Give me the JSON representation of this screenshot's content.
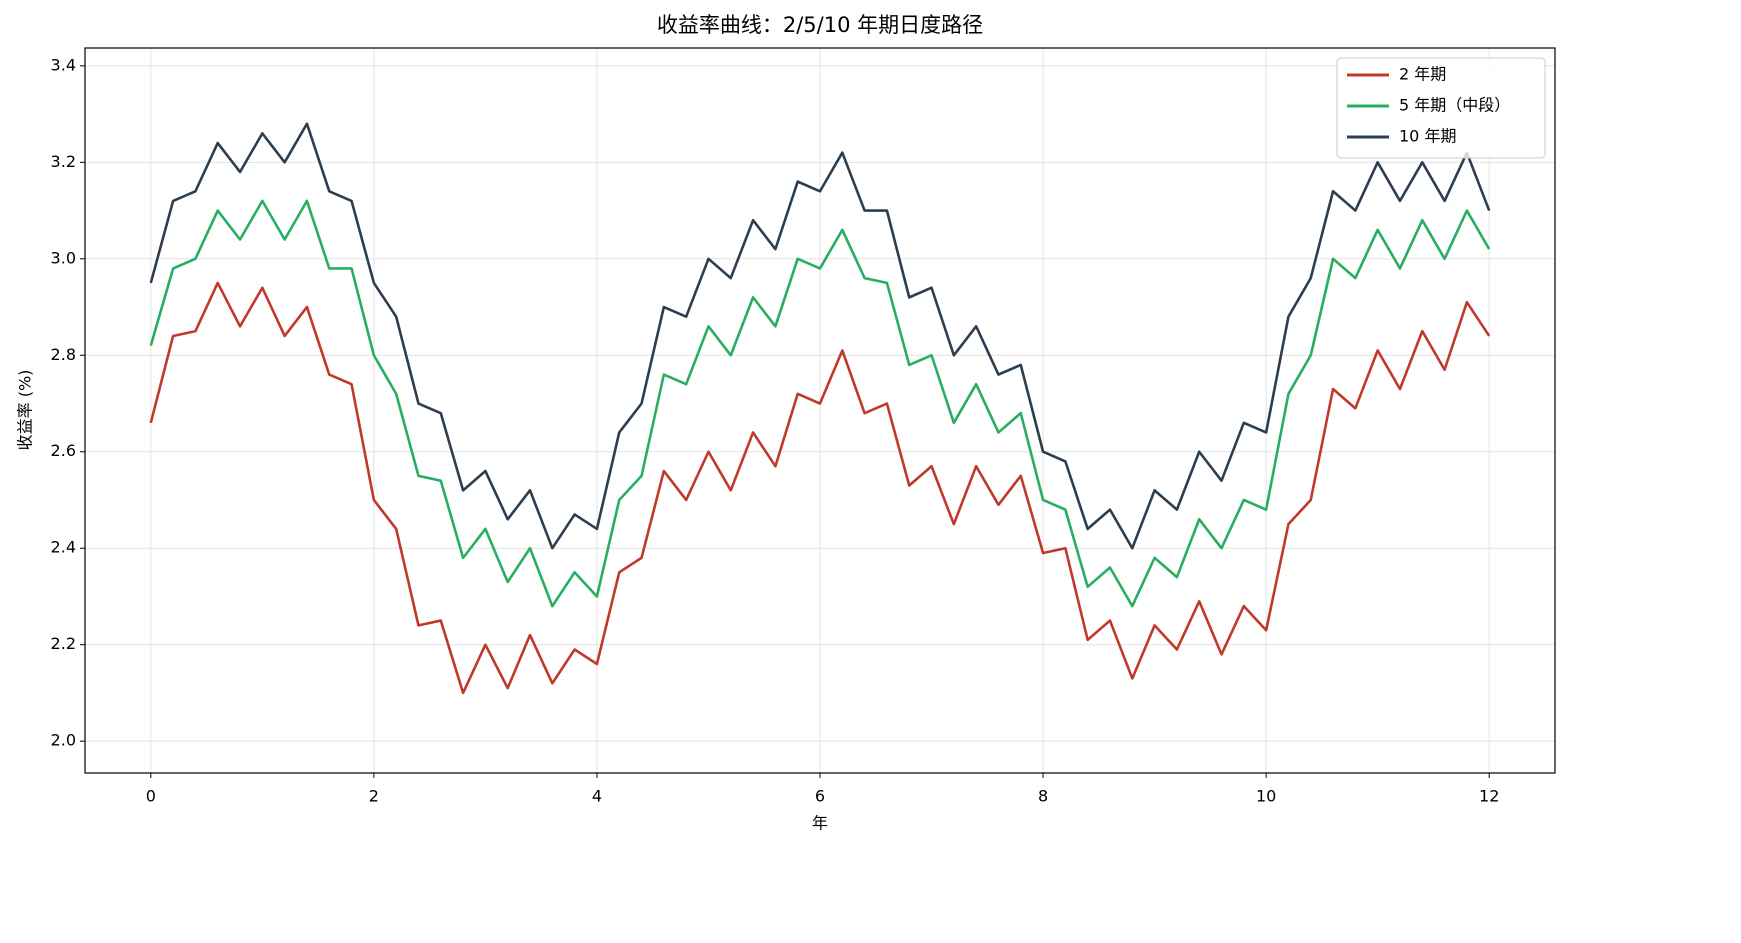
{
  "chart_data": {
    "type": "line",
    "title": "收益率曲线：2/5/10 年期日度路径",
    "xlabel": "年",
    "ylabel": "收益率 (%)",
    "x": [
      0,
      0.2,
      0.4,
      0.6,
      0.8,
      1.0,
      1.2,
      1.4,
      1.6,
      1.8,
      2.0,
      2.2,
      2.4,
      2.6,
      2.8,
      3.0,
      3.2,
      3.4,
      3.6,
      3.8,
      4.0,
      4.2,
      4.4,
      4.6,
      4.8,
      5.0,
      5.2,
      5.4,
      5.6,
      5.8,
      6.0,
      6.2,
      6.4,
      6.6,
      6.8,
      7.0,
      7.2,
      7.4,
      7.6,
      7.8,
      8.0,
      8.2,
      8.4,
      8.6,
      8.8,
      9.0,
      9.2,
      9.4,
      9.6,
      9.8,
      10.0,
      10.2,
      10.4,
      10.6,
      10.8,
      11.0,
      11.2,
      11.4,
      11.6,
      11.8,
      12.0
    ],
    "series": [
      {
        "name": "2 年期",
        "color": "#c0392b",
        "values": [
          2.66,
          2.84,
          2.85,
          2.95,
          2.86,
          2.94,
          2.84,
          2.9,
          2.76,
          2.74,
          2.5,
          2.44,
          2.24,
          2.25,
          2.1,
          2.2,
          2.11,
          2.22,
          2.12,
          2.19,
          2.16,
          2.35,
          2.38,
          2.56,
          2.5,
          2.6,
          2.52,
          2.64,
          2.57,
          2.72,
          2.7,
          2.81,
          2.68,
          2.7,
          2.53,
          2.57,
          2.45,
          2.57,
          2.49,
          2.55,
          2.39,
          2.4,
          2.21,
          2.25,
          2.13,
          2.24,
          2.19,
          2.29,
          2.18,
          2.28,
          2.23,
          2.45,
          2.5,
          2.73,
          2.69,
          2.81,
          2.73,
          2.85,
          2.77,
          2.91,
          2.84
        ]
      },
      {
        "name": "5 年期（中段）",
        "color": "#27ae60",
        "values": [
          2.82,
          2.98,
          3.0,
          3.1,
          3.04,
          3.12,
          3.04,
          3.12,
          2.98,
          2.98,
          2.8,
          2.72,
          2.55,
          2.54,
          2.38,
          2.44,
          2.33,
          2.4,
          2.28,
          2.35,
          2.3,
          2.5,
          2.55,
          2.76,
          2.74,
          2.86,
          2.8,
          2.92,
          2.86,
          3.0,
          2.98,
          3.06,
          2.96,
          2.95,
          2.78,
          2.8,
          2.66,
          2.74,
          2.64,
          2.68,
          2.5,
          2.48,
          2.32,
          2.36,
          2.28,
          2.38,
          2.34,
          2.46,
          2.4,
          2.5,
          2.48,
          2.72,
          2.8,
          3.0,
          2.96,
          3.06,
          2.98,
          3.08,
          3.0,
          3.1,
          3.02
        ]
      },
      {
        "name": "10 年期",
        "color": "#2c3e50",
        "values": [
          2.95,
          3.12,
          3.14,
          3.24,
          3.18,
          3.26,
          3.2,
          3.28,
          3.14,
          3.12,
          2.95,
          2.88,
          2.7,
          2.68,
          2.52,
          2.56,
          2.46,
          2.52,
          2.4,
          2.47,
          2.44,
          2.64,
          2.7,
          2.9,
          2.88,
          3.0,
          2.96,
          3.08,
          3.02,
          3.16,
          3.14,
          3.22,
          3.1,
          3.1,
          2.92,
          2.94,
          2.8,
          2.86,
          2.76,
          2.78,
          2.6,
          2.58,
          2.44,
          2.48,
          2.4,
          2.52,
          2.48,
          2.6,
          2.54,
          2.66,
          2.64,
          2.88,
          2.96,
          3.14,
          3.1,
          3.2,
          3.12,
          3.2,
          3.12,
          3.22,
          3.1
        ]
      }
    ],
    "xlim": [
      -0.59,
      12.59
    ],
    "ylim": [
      1.934,
      3.437
    ],
    "xticks": [
      0,
      2,
      4,
      6,
      8,
      10,
      12
    ],
    "yticks": [
      {
        "value": 2,
        "label": "2.0"
      },
      2.2,
      2.4,
      2.6,
      2.8,
      {
        "value": 3,
        "label": "3.0"
      },
      3.2,
      3.4
    ],
    "grid": true,
    "legend": "upper right"
  }
}
